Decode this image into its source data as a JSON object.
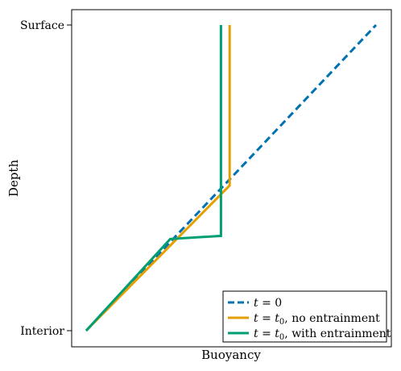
{
  "chart_data": {
    "type": "line",
    "xlabel": "Buoyancy",
    "ylabel": "Depth",
    "y_tick_labels": [
      "Surface",
      "Interior"
    ],
    "xlim": [
      0,
      1
    ],
    "ylim": [
      0,
      1
    ],
    "x_ticks": false,
    "grid": false,
    "legend_placement": "bottom-right",
    "series": [
      {
        "name": "t = 0",
        "legend": {
          "var": "t",
          "op": " = ",
          "rhs": "0",
          "rhs_italic": false,
          "rhs_sub": "",
          "note": ""
        },
        "color": "#0072B2",
        "dash": "dashed",
        "points": [
          [
            0.0,
            0.0
          ],
          [
            1.0,
            1.0
          ]
        ]
      },
      {
        "name": "t = t0, no entrainment",
        "legend": {
          "var": "t",
          "op": " = ",
          "rhs": "t",
          "rhs_italic": true,
          "rhs_sub": "0",
          "note": ", no entrainment"
        },
        "color": "#E69F00",
        "dash": "solid",
        "points": [
          [
            0.0,
            0.0
          ],
          [
            0.495,
            0.475
          ],
          [
            0.495,
            1.0
          ]
        ]
      },
      {
        "name": "t = t0, with entrainment",
        "legend": {
          "var": "t",
          "op": " = ",
          "rhs": "t",
          "rhs_italic": true,
          "rhs_sub": "0",
          "note": ", with entrainment"
        },
        "color": "#009E73",
        "dash": "solid",
        "points": [
          [
            0.0,
            0.0
          ],
          [
            0.29,
            0.3
          ],
          [
            0.465,
            0.31
          ],
          [
            0.465,
            1.0
          ]
        ]
      }
    ]
  }
}
